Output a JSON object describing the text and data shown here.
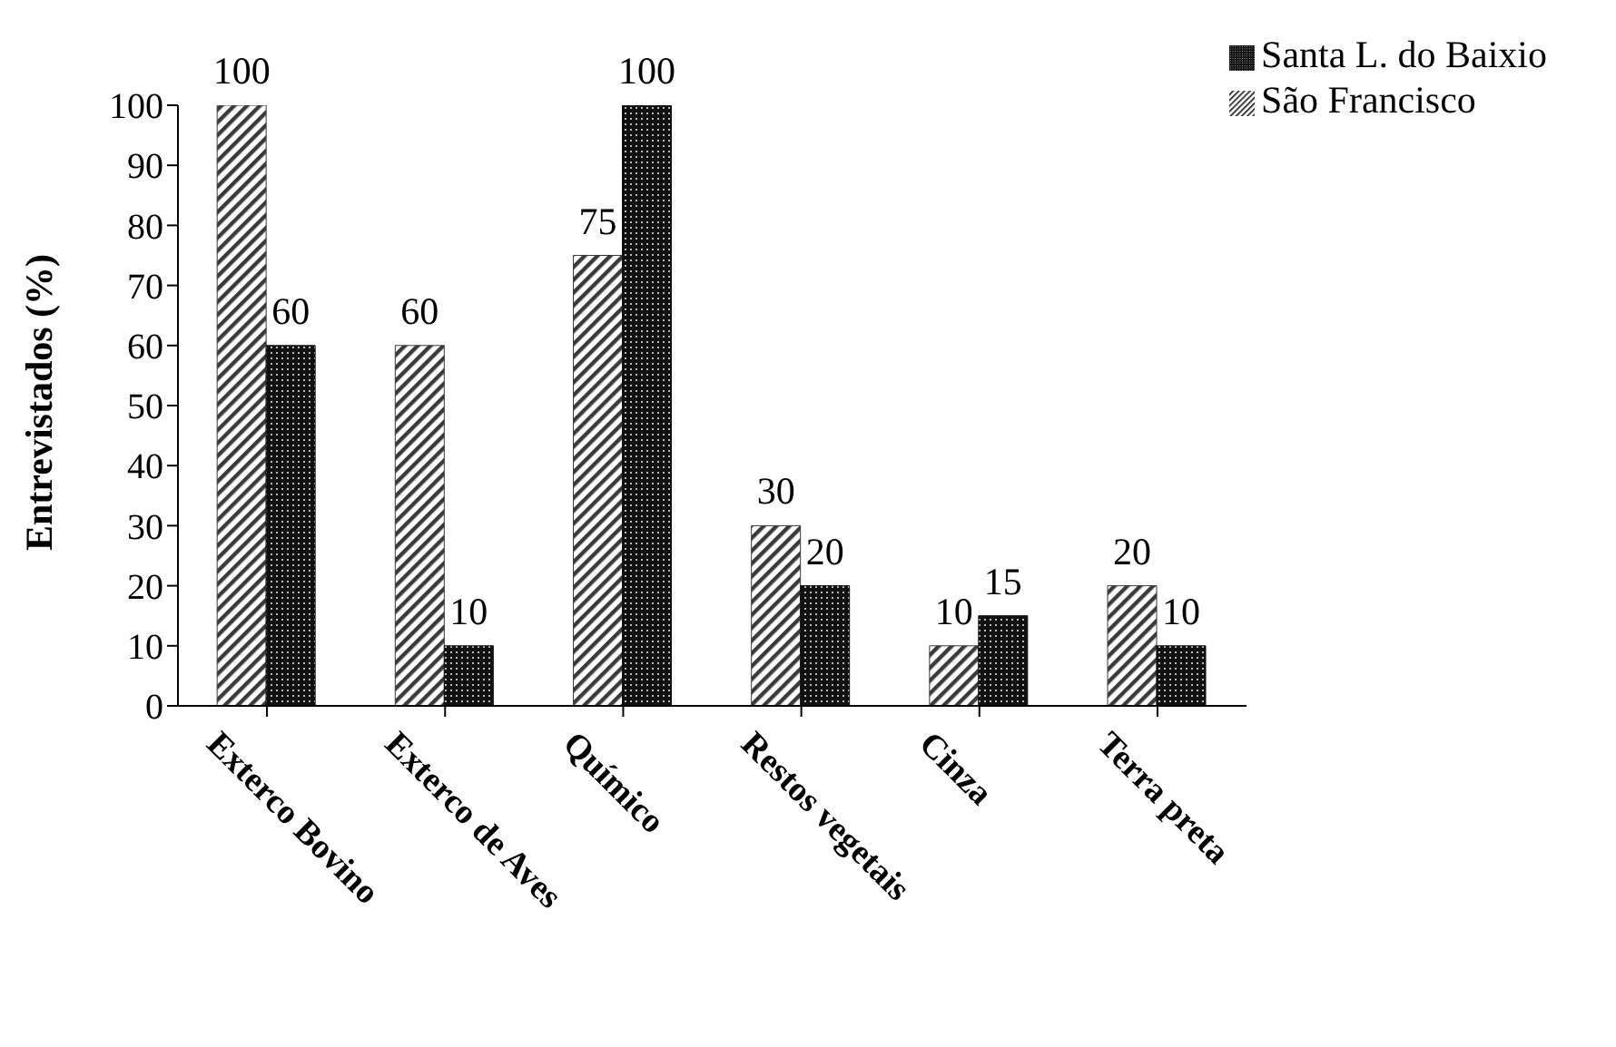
{
  "chart_data": {
    "type": "bar",
    "ylabel": "Entrevistados (%)",
    "categories": [
      "Exterco Bovino",
      "Exterco de Aves",
      "Químico",
      "Restos vegetais",
      "Cinza",
      "Terra preta"
    ],
    "series": [
      {
        "name": "São Francisco",
        "color": "#3a3a3a",
        "values": [
          100,
          60,
          75,
          30,
          10,
          20
        ]
      },
      {
        "name": "Santa L.  do Baixio",
        "color": "#111111",
        "values": [
          60,
          10,
          100,
          20,
          15,
          10
        ]
      }
    ],
    "ylim": [
      0,
      100
    ],
    "yticks": [
      0,
      10,
      20,
      30,
      40,
      50,
      60,
      70,
      80,
      90,
      100
    ],
    "grid": false,
    "legend": "top right",
    "data_labels": true
  }
}
